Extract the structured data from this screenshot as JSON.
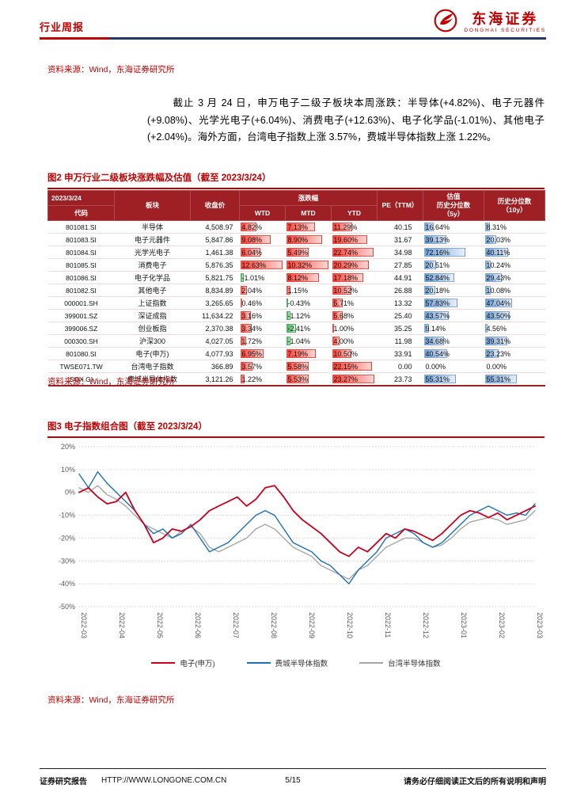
{
  "header": {
    "report_type": "行业周报",
    "logo": {
      "brand_cn": "东海证券",
      "brand_en": "DONGHAI SECURITIES",
      "icon": "phoenix-circle-icon",
      "color": "#C00000"
    }
  },
  "source_note": "资料来源：Wind，东海证券研究所",
  "intro_paragraph": "截止 3 月 24 日，申万电子二级子板块本周涨跌：半导体(+4.82%)、电子元器件(+9.08%)、光学光电子(+6.04%)、消费电子(+12.63%)、电子化学品(-1.01%)、其他电子(+2.04%)。海外方面，台湾电子指数上涨 3.57%，费城半导体指数上涨 1.22%。",
  "figure2": {
    "title": "图2 申万行业二级板块涨跌幅及估值（截至 2023/3/24）",
    "table": {
      "header": {
        "date": "2023/3/24",
        "code": "代码",
        "sector": "板块",
        "close": "收盘价",
        "change_group": "涨跌幅",
        "wtd": "WTD",
        "mtd": "MTD",
        "ytd": "YTD",
        "pe": "PE（TTM）",
        "pct5_l1": "估值",
        "pct5_l2": "历史分位数",
        "pct5_l3": "（5y）",
        "pct10_l1": "历史分位数",
        "pct10_l2": "（10y）"
      },
      "rows": [
        {
          "code": "801081.SI",
          "name": "半导体",
          "close": "4,508.97",
          "wtd": "4.82%",
          "mtd": "7.13%",
          "ytd": "11.29%",
          "pe": "40.15",
          "p5y": "16.64%",
          "p10y": "8.31%"
        },
        {
          "code": "801083.SI",
          "name": "电子元器件",
          "close": "5,847.86",
          "wtd": "9.08%",
          "mtd": "8.90%",
          "ytd": "19.60%",
          "pe": "31.67",
          "p5y": "39.13%",
          "p10y": "20.03%"
        },
        {
          "code": "801084.SI",
          "name": "光学光电子",
          "close": "1,461.38",
          "wtd": "6.04%",
          "mtd": "5.49%",
          "ytd": "22.74%",
          "pe": "34.98",
          "p5y": "72.16%",
          "p10y": "40.11%"
        },
        {
          "code": "801085.SI",
          "name": "消费电子",
          "close": "5,876.35",
          "wtd": "12.63%",
          "mtd": "10.32%",
          "ytd": "20.29%",
          "pe": "27.85",
          "p5y": "20.51%",
          "p10y": "10.24%"
        },
        {
          "code": "801086.SI",
          "name": "电子化学品",
          "close": "5,821.75",
          "wtd": "-1.01%",
          "mtd": "8.12%",
          "ytd": "17.18%",
          "pe": "44.91",
          "p5y": "52.84%",
          "p10y": "29.43%"
        },
        {
          "code": "801082.SI",
          "name": "其他电子",
          "close": "8,834.89",
          "wtd": "2.04%",
          "mtd": "1.15%",
          "ytd": "10.52%",
          "pe": "26.88",
          "p5y": "20.18%",
          "p10y": "10.08%"
        },
        {
          "code": "000001.SH",
          "name": "上证指数",
          "close": "3,265.65",
          "wtd": "0.46%",
          "mtd": "-0.43%",
          "ytd": "5.71%",
          "pe": "13.32",
          "p5y": "57.83%",
          "p10y": "47.04%"
        },
        {
          "code": "399001.SZ",
          "name": "深证成指",
          "close": "11,634.22",
          "wtd": "3.16%",
          "mtd": "-1.12%",
          "ytd": "5.68%",
          "pe": "25.40",
          "p5y": "43.57%",
          "p10y": "43.50%"
        },
        {
          "code": "399006.SZ",
          "name": "创业板指",
          "close": "2,370.38",
          "wtd": "3.34%",
          "mtd": "-2.41%",
          "ytd": "1.00%",
          "pe": "35.25",
          "p5y": "9.14%",
          "p10y": "4.56%"
        },
        {
          "code": "000300.SH",
          "name": "沪深300",
          "close": "4,027.05",
          "wtd": "1.72%",
          "mtd": "-1.04%",
          "ytd": "4.00%",
          "pe": "11.98",
          "p5y": "34.68%",
          "p10y": "39.31%"
        },
        {
          "code": "801080.SI",
          "name": "电子(申万)",
          "close": "4,077.93",
          "wtd": "6.95%",
          "mtd": "7.19%",
          "ytd": "10.50%",
          "pe": "33.91",
          "p5y": "40.54%",
          "p10y": "23.23%"
        },
        {
          "code": "TWSE071.TW",
          "name": "台湾电子指数",
          "close": "366.89",
          "wtd": "3.57%",
          "mtd": "5.58%",
          "ytd": "22.15%",
          "pe": "0.00",
          "p5y": "0.00%",
          "p10y": "0.00%"
        },
        {
          "code": "SOX.GI",
          "name": "费城半导体指数",
          "close": "3,121.26",
          "wtd": "1.22%",
          "mtd": "5.53%",
          "ytd": "23.27%",
          "pe": "23.73",
          "p5y": "55.31%",
          "p10y": "55.31%"
        }
      ]
    }
  },
  "figure3": {
    "title": "图3 电子指数组合图（截至 2023/3/24）",
    "chart_data": {
      "type": "line",
      "title": "电子指数组合图（截至 2023/3/24）",
      "xlabel": "",
      "ylabel": "",
      "ylim": [
        -50,
        20
      ],
      "y_ticks": [
        "20%",
        "10%",
        "0%",
        "-10%",
        "-20%",
        "-30%",
        "-40%",
        "-50%"
      ],
      "grid": true,
      "legend_position": "bottom",
      "x_labels": [
        "2022-03",
        "2022-04",
        "2022-05",
        "2022-06",
        "2022-07",
        "2022-08",
        "2022-09",
        "2022-10",
        "2022-11",
        "2022-12",
        "2023-01",
        "2023-02",
        "2023-03"
      ],
      "series": [
        {
          "name": "电子(申万)",
          "color": "#C9001E",
          "values": [
            0,
            2,
            -2,
            -5,
            -4,
            0,
            -8,
            -14,
            -22,
            -20,
            -16,
            -17,
            -15,
            -12,
            -8,
            -6,
            -4,
            -2,
            -6,
            -3,
            2,
            3,
            -2,
            -8,
            -12,
            -15,
            -18,
            -22,
            -26,
            -28,
            -24,
            -26,
            -22,
            -18,
            -20,
            -16,
            -17,
            -19,
            -21,
            -18,
            -14,
            -10,
            -8,
            -9,
            -11,
            -9,
            -12,
            -10,
            -8,
            -6
          ]
        },
        {
          "name": "费城半导体指数",
          "color": "#1F6FB5",
          "values": [
            8,
            2,
            9,
            4,
            0,
            -4,
            -8,
            -14,
            -18,
            -16,
            -20,
            -18,
            -14,
            -20,
            -26,
            -24,
            -22,
            -18,
            -14,
            -10,
            -8,
            -10,
            -16,
            -22,
            -24,
            -26,
            -30,
            -32,
            -36,
            -40,
            -34,
            -30,
            -26,
            -20,
            -18,
            -16,
            -18,
            -22,
            -24,
            -22,
            -18,
            -14,
            -10,
            -8,
            -6,
            -8,
            -10,
            -9,
            -10,
            -5
          ]
        },
        {
          "name": "台湾半导体指数",
          "color": "#A6A6A6",
          "values": [
            2,
            0,
            3,
            -1,
            -3,
            -6,
            -10,
            -14,
            -16,
            -18,
            -20,
            -17,
            -15,
            -18,
            -24,
            -26,
            -24,
            -22,
            -20,
            -16,
            -14,
            -16,
            -20,
            -24,
            -26,
            -28,
            -32,
            -34,
            -36,
            -38,
            -34,
            -32,
            -28,
            -24,
            -22,
            -20,
            -20,
            -22,
            -24,
            -23,
            -20,
            -16,
            -13,
            -12,
            -11,
            -12,
            -14,
            -13,
            -12,
            -8
          ]
        }
      ]
    }
  },
  "footer": {
    "left_bold": "证券研究报告",
    "url": "HTTP://WWW.LONGONE.COM.CN",
    "page": "5/15",
    "right": "请务必仔细阅读正文后的所有说明和声明"
  },
  "colors": {
    "accent_red": "#C00000",
    "header_rule_navy": "#1F3864",
    "table_header_bg": "#9E1F24",
    "databar_positive": "#FF372D",
    "databar_negative": "#3CAA50",
    "databar_percentile": "#6C9ED6"
  }
}
